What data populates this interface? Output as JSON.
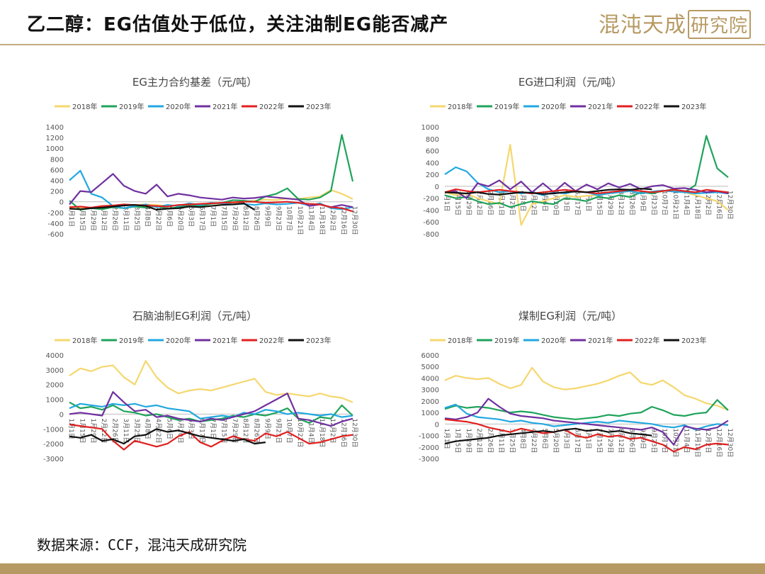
{
  "header": {
    "title": "乙二醇：EG估值处于低位，关注油制EG能否减产",
    "brand": "混沌天成",
    "brand_box": "研究院",
    "accent_color": "#b79a63"
  },
  "footer": {
    "source": "数据来源：CCF，混沌天成研究院"
  },
  "chart_data": [
    {
      "type": "line",
      "title": "EG主力合约基差（元/吨）",
      "legend": [
        "2018年",
        "2019年",
        "2020年",
        "2021年",
        "2022年",
        "2023年"
      ],
      "legend_position": "top",
      "ylim": [
        -600,
        1400
      ],
      "yticks": [
        1400,
        1200,
        1000,
        800,
        600,
        400,
        200,
        0,
        -200,
        -400,
        -600
      ],
      "x_ticks": [
        "1月1日",
        "1月15日",
        "1月29日",
        "2月12日",
        "2月26日",
        "3月11日",
        "3月25日",
        "4月8日",
        "4月22日",
        "5月6日",
        "5月20日",
        "6月3日",
        "6月17日",
        "7月1日",
        "7月15日",
        "7月29日",
        "8月12日",
        "8月26日",
        "9月9日",
        "9月23日",
        "10月7日",
        "10月21日",
        "11月4日",
        "11月18日",
        "12月2日",
        "12月16日",
        "12月30日"
      ],
      "grid": false,
      "series": [
        {
          "name": "2018年",
          "color": "#f5d76e",
          "values": [
            -100,
            -120,
            -110,
            -80,
            -90,
            -70,
            -60,
            -50,
            -60,
            -80,
            -70,
            -60,
            -50,
            -30,
            -40,
            -20,
            0,
            20,
            40,
            30,
            60,
            50,
            80,
            100,
            220,
            150,
            50
          ]
        },
        {
          "name": "2019年",
          "color": "#1fa35b",
          "values": [
            20,
            -150,
            -120,
            -140,
            -100,
            -120,
            -90,
            -110,
            -80,
            -130,
            -100,
            -60,
            -80,
            -40,
            -20,
            30,
            20,
            0,
            100,
            150,
            250,
            50,
            40,
            80,
            200,
            1250,
            380
          ]
        },
        {
          "name": "2020年",
          "color": "#22a8e0",
          "values": [
            400,
            580,
            150,
            80,
            -80,
            -120,
            -80,
            -50,
            -100,
            -60,
            -80,
            -30,
            -60,
            -20,
            -30,
            -50,
            -40,
            -60,
            -30,
            -50,
            -40,
            -20,
            -70,
            -30,
            -120,
            -140,
            -100
          ]
        },
        {
          "name": "2021年",
          "color": "#7030a0",
          "values": [
            -50,
            200,
            180,
            350,
            520,
            300,
            200,
            150,
            320,
            100,
            150,
            120,
            80,
            60,
            40,
            80,
            60,
            70,
            100,
            80,
            60,
            40,
            -80,
            -50,
            -100,
            -60,
            -100
          ]
        },
        {
          "name": "2022年",
          "color": "#e02020",
          "values": [
            -100,
            -90,
            -110,
            -80,
            -70,
            -50,
            -60,
            -70,
            -80,
            -90,
            -60,
            -50,
            -40,
            -30,
            -20,
            -10,
            0,
            0,
            -20,
            -10,
            0,
            -20,
            -40,
            -50,
            -100,
            -120,
            -180
          ]
        },
        {
          "name": "2023年",
          "color": "#111111",
          "values": [
            -130,
            -140,
            -120,
            -110,
            -90,
            -70,
            -60,
            -80,
            -150,
            -130,
            -120,
            -90,
            -100,
            -80,
            -60,
            -50,
            -30,
            -150
          ]
        }
      ]
    },
    {
      "type": "line",
      "title": "EG进口利润（元/吨）",
      "legend": [
        "2018年",
        "2019年",
        "2020年",
        "2021年",
        "2022年",
        "2023年"
      ],
      "legend_position": "top",
      "ylim": [
        -800,
        1000
      ],
      "yticks": [
        1000,
        800,
        600,
        400,
        200,
        0,
        -200,
        -400,
        -600,
        -800
      ],
      "x_ticks": [
        "1月1日",
        "1月15日",
        "1月29日",
        "2月12日",
        "2月26日",
        "3月11日",
        "3月25日",
        "4月8日",
        "4月22日",
        "5月6日",
        "5月20日",
        "6月3日",
        "6月17日",
        "7月1日",
        "7月15日",
        "7月29日",
        "8月12日",
        "8月26日",
        "9月9日",
        "9月23日",
        "10月7日",
        "10月21日",
        "11月4日",
        "11月18日",
        "12月2日",
        "12月16日",
        "12月30日"
      ],
      "grid": false,
      "series": [
        {
          "name": "2018年",
          "color": "#f5d76e",
          "values": [
            -100,
            -150,
            -120,
            -200,
            -250,
            -300,
            700,
            -650,
            -300,
            -250,
            -200,
            -150,
            -180,
            -160,
            -150,
            -120,
            -100,
            -80,
            -120,
            -100,
            -80,
            -60,
            -100,
            -150,
            -200,
            -250,
            -400
          ]
        },
        {
          "name": "2019年",
          "color": "#1fa35b",
          "values": [
            -150,
            -200,
            -180,
            -250,
            -300,
            -280,
            -350,
            -300,
            -250,
            -280,
            -300,
            -200,
            -220,
            -250,
            -180,
            -200,
            -150,
            -180,
            -100,
            -120,
            -80,
            -50,
            -100,
            20,
            850,
            300,
            150
          ]
        },
        {
          "name": "2020年",
          "color": "#22a8e0",
          "values": [
            200,
            320,
            250,
            60,
            -50,
            -100,
            -80,
            -120,
            -100,
            -150,
            -100,
            -120,
            -80,
            -100,
            -150,
            -120,
            -100,
            -80,
            -120,
            -90,
            -70,
            -90,
            -100,
            -120,
            -110,
            -100,
            -120
          ]
        },
        {
          "name": "2021年",
          "color": "#7030a0",
          "values": [
            -100,
            -80,
            -200,
            50,
            0,
            100,
            -50,
            80,
            -100,
            50,
            -100,
            60,
            -80,
            30,
            -50,
            50,
            -20,
            40,
            -50,
            0,
            20,
            -40,
            -30,
            -60,
            -100,
            -80,
            -120
          ]
        },
        {
          "name": "2022年",
          "color": "#e02020",
          "values": [
            -100,
            -50,
            -80,
            -100,
            -80,
            -60,
            -80,
            -100,
            -120,
            -100,
            -80,
            -60,
            -80,
            -100,
            -120,
            -100,
            -80,
            -60,
            -80,
            -100,
            -80,
            -60,
            -80,
            -100,
            -60,
            -80,
            -100
          ]
        },
        {
          "name": "2023年",
          "color": "#111111",
          "values": [
            -100,
            -110,
            -120,
            -100,
            -130,
            -140,
            -120,
            -100,
            -110,
            -130,
            -120,
            -100,
            -90,
            -100,
            -80,
            -60,
            -50,
            -60,
            -40,
            -50
          ]
        }
      ]
    },
    {
      "type": "line",
      "title": "石脑油制EG利润（元/吨）",
      "legend": [
        "2018年",
        "2019年",
        "2020年",
        "2021年",
        "2022年",
        "2023年"
      ],
      "legend_position": "top",
      "ylim": [
        -3000,
        4000
      ],
      "yticks": [
        4000,
        3000,
        2000,
        1000,
        0,
        -1000,
        -2000,
        -3000
      ],
      "x_ticks": [
        "1月1日",
        "1月15日",
        "1月29日",
        "2月12日",
        "2月26日",
        "3月11日",
        "3月25日",
        "4月8日",
        "4月22日",
        "5月6日",
        "5月20日",
        "6月3日",
        "6月17日",
        "7月1日",
        "7月15日",
        "7月29日",
        "8月12日",
        "8月26日",
        "9月9日",
        "9月23日",
        "10月7日",
        "10月21日",
        "11月4日",
        "11月18日",
        "12月2日",
        "12月16日",
        "12月30日"
      ],
      "grid": false,
      "series": [
        {
          "name": "2018年",
          "color": "#f5d76e",
          "values": [
            2600,
            3100,
            2900,
            3200,
            3300,
            2500,
            2000,
            3600,
            2500,
            1800,
            1400,
            1600,
            1700,
            1600,
            1800,
            2000,
            2200,
            2400,
            1500,
            1300,
            1400,
            1300,
            1200,
            1400,
            1200,
            1100,
            800
          ]
        },
        {
          "name": "2019年",
          "color": "#1fa35b",
          "values": [
            800,
            400,
            500,
            300,
            600,
            200,
            100,
            -100,
            0,
            -200,
            -400,
            -300,
            -500,
            -400,
            -300,
            -100,
            -200,
            0,
            -100,
            100,
            400,
            -300,
            -600,
            -200,
            -300,
            600,
            -100
          ]
        },
        {
          "name": "2020年",
          "color": "#22a8e0",
          "values": [
            400,
            700,
            600,
            500,
            700,
            600,
            700,
            500,
            600,
            400,
            300,
            200,
            -300,
            -200,
            -100,
            -200,
            100,
            0,
            300,
            200,
            0,
            100,
            0,
            -100,
            0,
            -200,
            -100
          ]
        },
        {
          "name": "2021年",
          "color": "#7030a0",
          "values": [
            0,
            100,
            0,
            -100,
            1500,
            800,
            200,
            300,
            -200,
            -100,
            -300,
            -400,
            -500,
            -300,
            -400,
            -200,
            0,
            200,
            600,
            1000,
            1400,
            -300,
            -400,
            -600,
            -800,
            -500,
            -300
          ]
        },
        {
          "name": "2022年",
          "color": "#e02020",
          "values": [
            -700,
            -800,
            -900,
            -1000,
            -1800,
            -2400,
            -1800,
            -2000,
            -2200,
            -2000,
            -1500,
            -1200,
            -1900,
            -2200,
            -1800,
            -1500,
            -1700,
            -1800,
            -1300,
            -1500,
            -1200,
            -1600,
            -2000,
            -1900,
            -1700,
            -1500,
            -1400
          ]
        },
        {
          "name": "2023年",
          "color": "#111111",
          "values": [
            -1500,
            -1600,
            -1400,
            -1800,
            -1700,
            -2000,
            -1500,
            -1400,
            -1000,
            -1200,
            -1100,
            -1300,
            -1500,
            -1600,
            -1700,
            -1800,
            -1700,
            -2000,
            -1900
          ]
        }
      ]
    },
    {
      "type": "line",
      "title": "煤制EG利润（元/吨）",
      "legend": [
        "2018年",
        "2019年",
        "2020年",
        "2021年",
        "2022年",
        "2023年"
      ],
      "legend_position": "top",
      "ylim": [
        -3000,
        6000
      ],
      "yticks": [
        6000,
        5000,
        4000,
        3000,
        2000,
        1000,
        0,
        -1000,
        -2000,
        -3000
      ],
      "x_ticks": [
        "1月1日",
        "1月15日",
        "1月29日",
        "2月12日",
        "2月26日",
        "3月11日",
        "3月25日",
        "4月8日",
        "4月22日",
        "5月6日",
        "5月20日",
        "6月3日",
        "6月17日",
        "7月1日",
        "7月15日",
        "7月29日",
        "8月12日",
        "8月26日",
        "9月9日",
        "9月23日",
        "10月7日",
        "10月21日",
        "11月4日",
        "11月18日",
        "12月2日",
        "12月16日",
        "12月30日"
      ],
      "grid": false,
      "series": [
        {
          "name": "2018年",
          "color": "#f5d76e",
          "values": [
            3800,
            4200,
            4000,
            3900,
            4000,
            3500,
            3100,
            3400,
            4900,
            3700,
            3200,
            3000,
            3100,
            3300,
            3500,
            3800,
            4200,
            4500,
            3600,
            3400,
            3800,
            3200,
            2500,
            2200,
            1800,
            1600,
            1200
          ]
        },
        {
          "name": "2019年",
          "color": "#1fa35b",
          "values": [
            1300,
            1600,
            1400,
            1500,
            1400,
            1200,
            1000,
            1100,
            1000,
            800,
            600,
            500,
            400,
            500,
            600,
            800,
            700,
            900,
            1000,
            1500,
            1200,
            800,
            700,
            900,
            1000,
            2100,
            1200
          ]
        },
        {
          "name": "2020年",
          "color": "#22a8e0",
          "values": [
            1400,
            1700,
            900,
            600,
            500,
            400,
            200,
            300,
            100,
            0,
            -200,
            -100,
            0,
            100,
            200,
            100,
            300,
            200,
            100,
            0,
            -200,
            -300,
            -100,
            -500,
            -200,
            0,
            -100
          ]
        },
        {
          "name": "2021年",
          "color": "#7030a0",
          "values": [
            500,
            400,
            600,
            1000,
            2200,
            1500,
            900,
            700,
            600,
            500,
            300,
            200,
            100,
            0,
            -100,
            -200,
            -300,
            -400,
            -500,
            -300,
            -700,
            -1800,
            -200,
            -400,
            -500,
            -300,
            300
          ]
        },
        {
          "name": "2022年",
          "color": "#e02020",
          "values": [
            400,
            300,
            200,
            0,
            -300,
            -500,
            -700,
            -400,
            -600,
            -800,
            -700,
            -500,
            -1000,
            -1200,
            -900,
            -1100,
            -1000,
            -1300,
            -1200,
            -1500,
            -1800,
            -2400,
            -2000,
            -2200,
            -1800,
            -1700,
            -1800
          ]
        },
        {
          "name": "2023年",
          "color": "#111111",
          "values": [
            -1700,
            -1500,
            -1400,
            -1300,
            -1200,
            -1000,
            -900,
            -800,
            -700,
            -600,
            -700,
            -500,
            -400,
            -600,
            -500,
            -700,
            -600,
            -800,
            -900,
            -1000
          ]
        }
      ]
    }
  ]
}
